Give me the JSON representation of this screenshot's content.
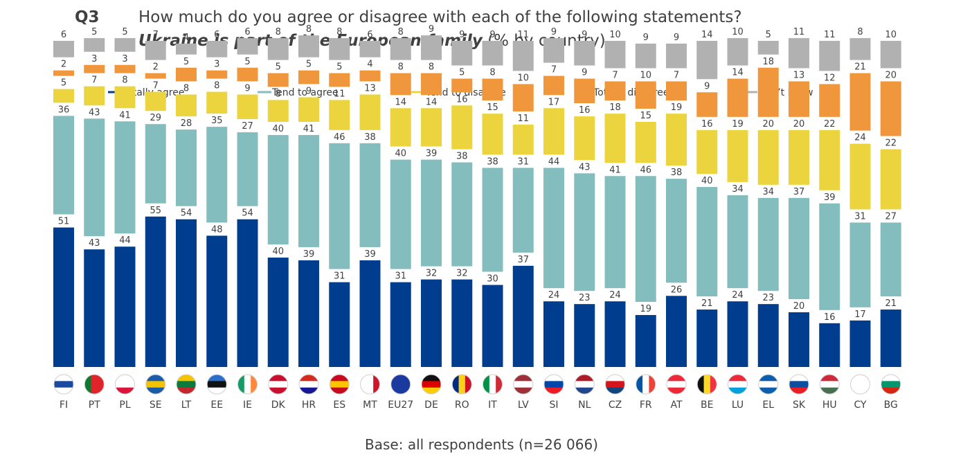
{
  "header": {
    "question_number": "Q3",
    "question": "How much do you agree or disagree with each of the following statements?",
    "statement": "Ukraine is part of the European family",
    "statement_suffix": "(% by country)"
  },
  "footer": {
    "base": "Base: all respondents (n=26 066)"
  },
  "chart_data": {
    "type": "bar",
    "stacked": true,
    "categories": [
      "FI",
      "PT",
      "PL",
      "SE",
      "LT",
      "EE",
      "IE",
      "DK",
      "HR",
      "ES",
      "MT",
      "EU27",
      "DE",
      "RO",
      "IT",
      "LV",
      "SI",
      "NL",
      "CZ",
      "FR",
      "AT",
      "BE",
      "LU",
      "EL",
      "SK",
      "HU",
      "CY",
      "BG"
    ],
    "series": [
      {
        "name": "Totally agree",
        "color": "#003d8f",
        "values": [
          51,
          43,
          44,
          55,
          54,
          48,
          54,
          40,
          39,
          31,
          39,
          31,
          32,
          32,
          30,
          37,
          24,
          23,
          24,
          19,
          26,
          21,
          24,
          23,
          20,
          16,
          17,
          21
        ]
      },
      {
        "name": "Tend to agree",
        "color": "#84bdbd",
        "values": [
          36,
          43,
          41,
          29,
          28,
          35,
          27,
          40,
          41,
          46,
          38,
          40,
          39,
          38,
          38,
          31,
          44,
          43,
          41,
          46,
          38,
          40,
          34,
          34,
          37,
          39,
          31,
          27
        ]
      },
      {
        "name": "Tend to disagree",
        "color": "#ecd43e",
        "values": [
          5,
          7,
          8,
          7,
          8,
          8,
          9,
          8,
          9,
          11,
          13,
          14,
          14,
          16,
          15,
          11,
          17,
          16,
          18,
          15,
          19,
          16,
          19,
          20,
          20,
          22,
          24,
          22
        ]
      },
      {
        "name": "Totally disagree",
        "color": "#f0963c",
        "values": [
          2,
          3,
          3,
          2,
          5,
          3,
          5,
          5,
          5,
          5,
          4,
          8,
          8,
          5,
          8,
          10,
          7,
          9,
          7,
          10,
          7,
          9,
          14,
          18,
          13,
          12,
          21,
          20
        ]
      },
      {
        "name": "Don’t know",
        "color": "#b1b1b1",
        "values": [
          6,
          5,
          5,
          7,
          4,
          6,
          6,
          8,
          8,
          8,
          6,
          8,
          9,
          9,
          9,
          11,
          9,
          9,
          10,
          9,
          9,
          14,
          10,
          5,
          11,
          11,
          8,
          10
        ]
      }
    ],
    "legend_position": "top"
  }
}
